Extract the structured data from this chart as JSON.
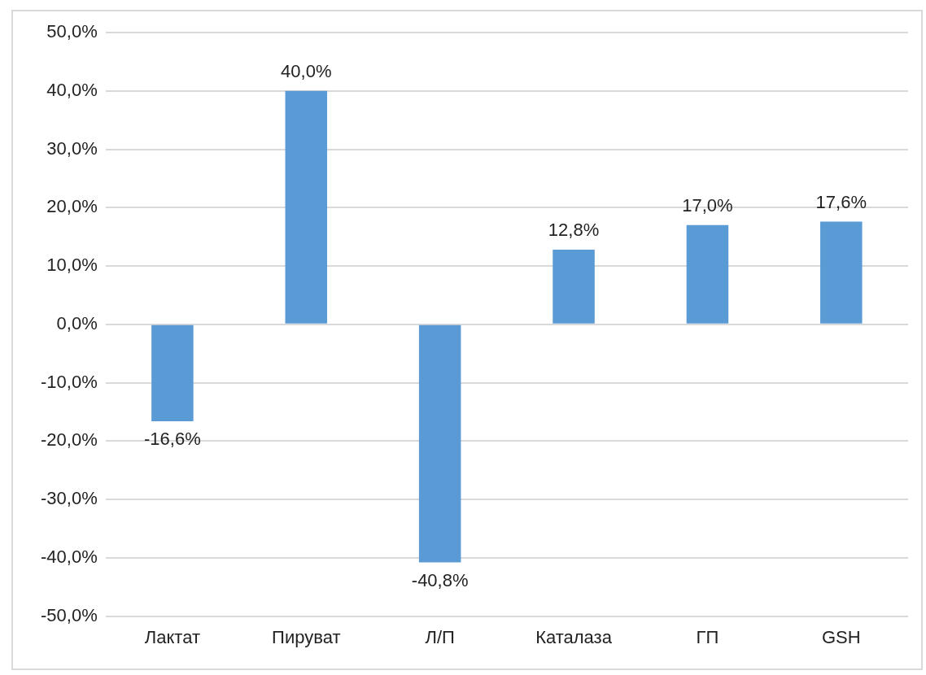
{
  "chart_data": {
    "type": "bar",
    "categories": [
      "Лактат",
      "Пируват",
      "Л/П",
      "Каталаза",
      "ГП",
      "GSH"
    ],
    "values": [
      -16.6,
      40.0,
      -40.8,
      12.8,
      17.0,
      17.6
    ],
    "value_labels": [
      "-16,6%",
      "40,0%",
      "-40,8%",
      "12,8%",
      "17,0%",
      "17,6%"
    ],
    "color": "#5b9bd5",
    "ylim": [
      -50,
      50
    ],
    "yticks": [
      {
        "value": -50,
        "label": "-50,0%"
      },
      {
        "value": -40,
        "label": "-40,0%"
      },
      {
        "value": -30,
        "label": "-30,0%"
      },
      {
        "value": -20,
        "label": "-20,0%"
      },
      {
        "value": -10,
        "label": "-10,0%"
      },
      {
        "value": 0,
        "label": "0,0%"
      },
      {
        "value": 10,
        "label": "10,0%"
      },
      {
        "value": 20,
        "label": "20,0%"
      },
      {
        "value": 30,
        "label": "30,0%"
      },
      {
        "value": 40,
        "label": "40,0%"
      },
      {
        "value": 50,
        "label": "50,0%"
      }
    ],
    "grid": "y",
    "legend": false
  }
}
